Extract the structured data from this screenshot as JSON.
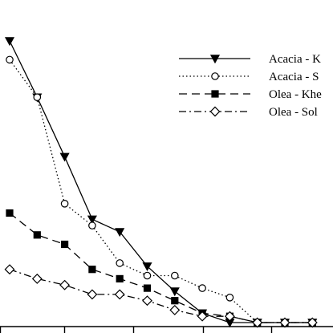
{
  "chart_data": {
    "type": "line",
    "title": "",
    "xlabel": "",
    "ylabel": "",
    "x": [
      1,
      2,
      3,
      4,
      5,
      6,
      7,
      8,
      9,
      10,
      11,
      12
    ],
    "xlim": [
      0.8,
      12.5
    ],
    "ylim": [
      0,
      100
    ],
    "grid": false,
    "legend_position": "top-right",
    "series": [
      {
        "name": "Acacia - K",
        "line_style": "solid",
        "marker": "triangle-down-filled",
        "values": [
          90,
          72,
          53,
          33,
          29,
          18,
          10,
          3,
          0,
          0,
          0,
          0
        ]
      },
      {
        "name": "Acacia - S",
        "line_style": "dotted",
        "marker": "circle-open",
        "values": [
          84,
          72,
          38,
          31,
          19,
          15,
          15,
          11,
          8,
          0,
          0,
          0
        ]
      },
      {
        "name": "Olea - Khe",
        "line_style": "dashed",
        "marker": "square-filled",
        "values": [
          35,
          28,
          25,
          17,
          14,
          11,
          7,
          3,
          2,
          0,
          0,
          0
        ]
      },
      {
        "name": "Olea -  Sol",
        "line_style": "dash-dot",
        "marker": "diamond-open",
        "values": [
          17,
          14,
          12,
          9,
          9,
          7,
          4,
          2,
          2,
          0,
          0,
          0
        ]
      }
    ],
    "colors": {
      "line": "#000000",
      "background": "#ffffff"
    }
  }
}
